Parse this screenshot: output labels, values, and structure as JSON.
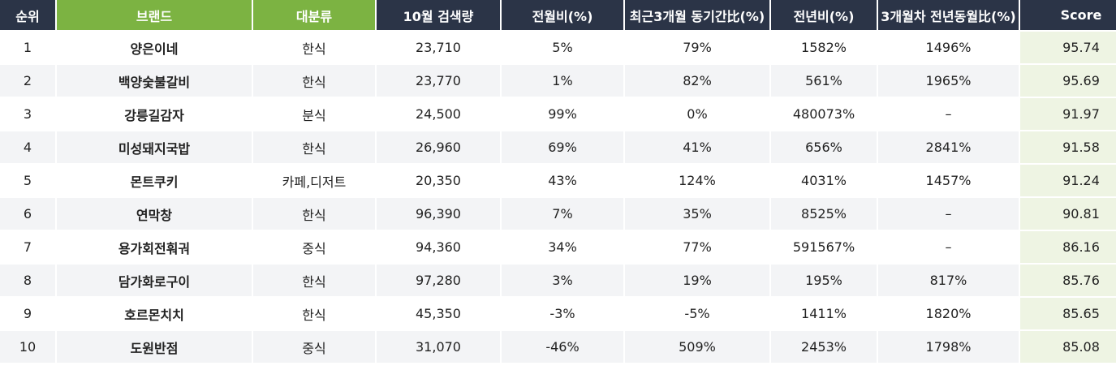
{
  "headers": [
    "순위",
    "브랜드",
    "대분류",
    "10월 검색량",
    "전월비(%)",
    "최근3개월 동기간比(%)",
    "전년비(%)",
    "3개월차 전년동월比(%)",
    "Score"
  ],
  "rows": [
    [
      "1",
      "양은이네",
      "한식",
      "23,710",
      "5%",
      "79%",
      "1582%",
      "1496%",
      "95.74"
    ],
    [
      "2",
      "백양숯불갈비",
      "한식",
      "23,770",
      "1%",
      "82%",
      "561%",
      "1965%",
      "95.69"
    ],
    [
      "3",
      "강릉길감자",
      "분식",
      "24,500",
      "99%",
      "0%",
      "480073%",
      "–",
      "91.97"
    ],
    [
      "4",
      "미성돼지국밥",
      "한식",
      "26,960",
      "69%",
      "41%",
      "656%",
      "2841%",
      "91.58"
    ],
    [
      "5",
      "몬트쿠키",
      "카페,디저트",
      "20,350",
      "43%",
      "124%",
      "4031%",
      "1457%",
      "91.24"
    ],
    [
      "6",
      "연막창",
      "한식",
      "96,390",
      "7%",
      "35%",
      "8525%",
      "–",
      "90.81"
    ],
    [
      "7",
      "용가회전훠궈",
      "중식",
      "94,360",
      "34%",
      "77%",
      "591567%",
      "–",
      "86.16"
    ],
    [
      "8",
      "담가화로구이",
      "한식",
      "97,280",
      "3%",
      "19%",
      "195%",
      "817%",
      "85.76"
    ],
    [
      "9",
      "호르몬치치",
      "한식",
      "45,350",
      "-3%",
      "-5%",
      "1411%",
      "1820%",
      "85.65"
    ],
    [
      "10",
      "도원반점",
      "중식",
      "31,070",
      "-46%",
      "509%",
      "2453%",
      "1798%",
      "85.08"
    ]
  ]
}
